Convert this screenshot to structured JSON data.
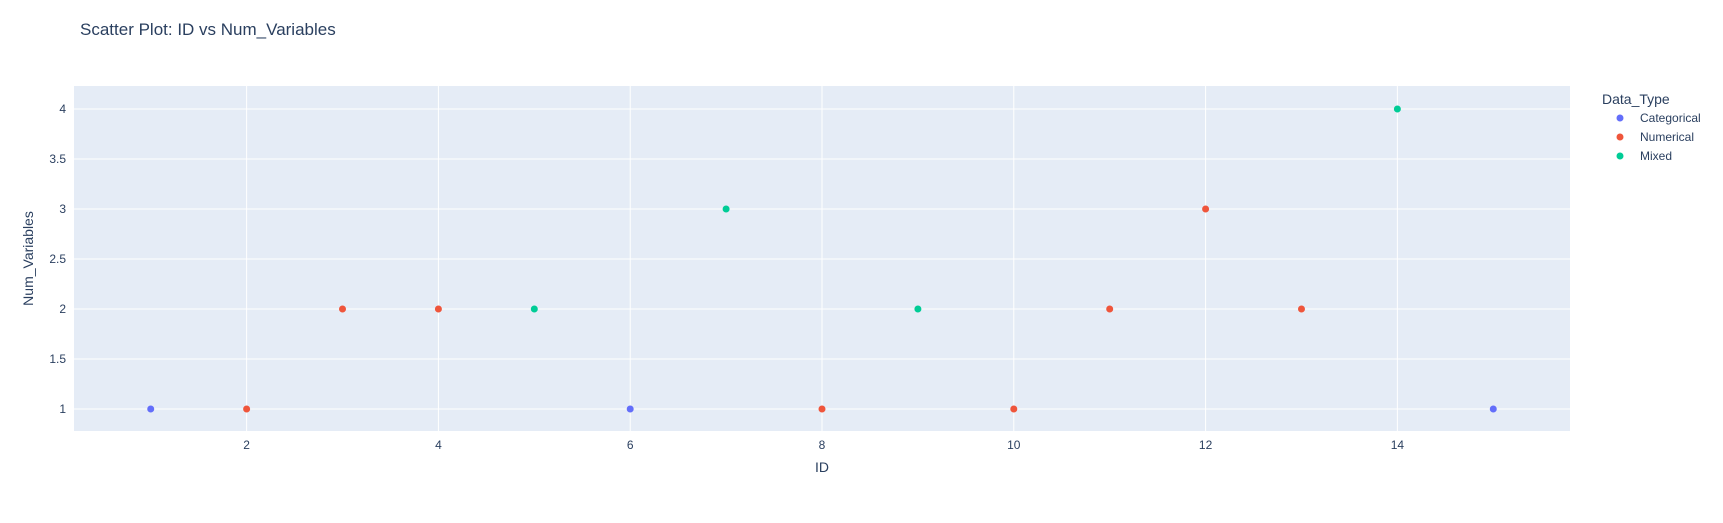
{
  "chart_data": {
    "type": "scatter",
    "title": "Scatter Plot: ID vs Num_Variables",
    "xlabel": "ID",
    "ylabel": "Num_Variables",
    "xlim": [
      0.2,
      15.8
    ],
    "ylim": [
      0.78,
      4.23
    ],
    "xticks": [
      2,
      4,
      6,
      8,
      10,
      12,
      14
    ],
    "yticks": [
      1,
      1.5,
      2,
      2.5,
      3,
      3.5,
      4
    ],
    "grid": true,
    "legend_title": "Data_Type",
    "legend_position": "top-right outside",
    "series": [
      {
        "name": "Categorical",
        "color": "#636efa",
        "x": [
          1,
          6,
          15
        ],
        "y": [
          1,
          1,
          1
        ]
      },
      {
        "name": "Numerical",
        "color": "#ef553b",
        "x": [
          2,
          3,
          4,
          8,
          10,
          11,
          12,
          13
        ],
        "y": [
          1,
          2,
          2,
          1,
          1,
          2,
          3,
          2
        ]
      },
      {
        "name": "Mixed",
        "color": "#00cc96",
        "x": [
          5,
          7,
          9,
          14
        ],
        "y": [
          2,
          3,
          2,
          4
        ]
      }
    ]
  }
}
